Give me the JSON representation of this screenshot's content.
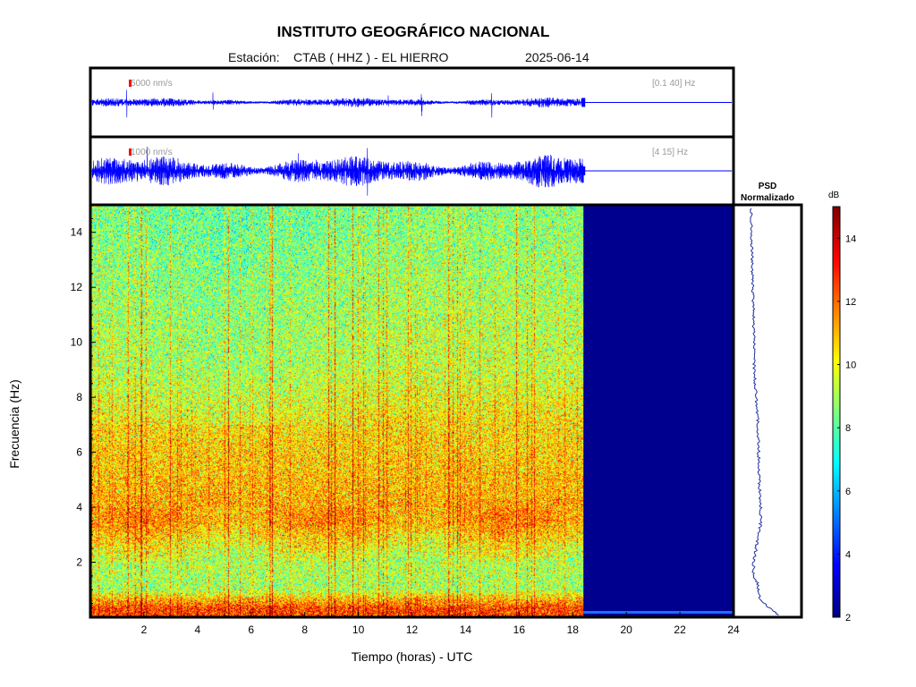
{
  "header": {
    "title": "INSTITUTO GEOGRÁFICO NACIONAL",
    "station_prefix": "Estación:",
    "station": "CTAB ( HHZ ) - EL HIERRO",
    "date": "2025-06-14"
  },
  "chart_data": [
    {
      "type": "line",
      "panel": "seismogram-broadband",
      "scale_label": "5000 nm/s",
      "filter_label": "[0.1 40] Hz",
      "xlim": [
        0,
        24
      ],
      "data_end_hour": 18.4,
      "color": "#0000ff"
    },
    {
      "type": "line",
      "panel": "seismogram-highpass",
      "scale_label": "1000 nm/s",
      "filter_label": "[4 15] Hz",
      "xlim": [
        0,
        24
      ],
      "data_end_hour": 18.4,
      "color": "#0000ff"
    },
    {
      "type": "heatmap",
      "panel": "spectrogram",
      "xlabel": "Tiempo (horas) - UTC",
      "ylabel": "Frecuencia  (Hz)",
      "xlim": [
        0,
        24
      ],
      "ylim": [
        0,
        15
      ],
      "xticks": [
        2,
        4,
        6,
        8,
        10,
        12,
        14,
        16,
        18,
        20,
        22,
        24
      ],
      "yticks": [
        2,
        4,
        6,
        8,
        10,
        12,
        14
      ],
      "data_end_hour": 18.4,
      "band_profile_db": [
        {
          "freq": 0.3,
          "db": 12.5
        },
        {
          "freq": 1.0,
          "db": 9.0
        },
        {
          "freq": 2.0,
          "db": 9.2
        },
        {
          "freq": 3.5,
          "db": 11.3
        },
        {
          "freq": 5.0,
          "db": 10.8
        },
        {
          "freq": 7.0,
          "db": 10.4
        },
        {
          "freq": 9.0,
          "db": 9.4
        },
        {
          "freq": 11.0,
          "db": 9.2
        },
        {
          "freq": 13.0,
          "db": 8.8
        },
        {
          "freq": 15.0,
          "db": 8.6
        }
      ]
    },
    {
      "type": "line",
      "panel": "psd",
      "title_line1": "PSD",
      "title_line2": "Normalizado",
      "ylim": [
        0,
        15
      ]
    },
    {
      "type": "heatmap",
      "panel": "colorbar",
      "label": "dB",
      "range": [
        2,
        15
      ],
      "ticks": [
        2,
        4,
        6,
        8,
        10,
        12,
        14
      ]
    }
  ]
}
